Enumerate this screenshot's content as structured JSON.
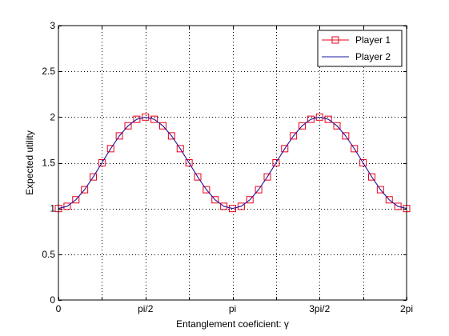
{
  "chart_data": {
    "type": "line",
    "title": "",
    "xlabel": "Entanglement coeficient: γ",
    "ylabel": "Expected utility",
    "xlim": [
      0,
      6.283185307
    ],
    "ylim": [
      0,
      3
    ],
    "x_ticks": [
      {
        "value": 0,
        "label": "0"
      },
      {
        "value": 1.5707963,
        "label": "pi/2"
      },
      {
        "value": 3.1415927,
        "label": "pi"
      },
      {
        "value": 4.712389,
        "label": "3pi/2"
      },
      {
        "value": 6.2831853,
        "label": "2pi"
      }
    ],
    "x_minor_ticks": [
      0.7853982,
      2.3561945,
      3.9269908,
      5.4977871
    ],
    "y_ticks": [
      {
        "value": 0,
        "label": "0"
      },
      {
        "value": 0.5,
        "label": "0.5"
      },
      {
        "value": 1,
        "label": "1"
      },
      {
        "value": 1.5,
        "label": "1.5"
      },
      {
        "value": 2,
        "label": "2"
      },
      {
        "value": 2.5,
        "label": "2.5"
      },
      {
        "value": 3,
        "label": "3"
      }
    ],
    "grid": true,
    "legend_position": "top-right",
    "x": [
      0,
      0.1571,
      0.3142,
      0.4712,
      0.6283,
      0.7854,
      0.9425,
      1.0996,
      1.2566,
      1.4137,
      1.5708,
      1.7279,
      1.885,
      2.042,
      2.1991,
      2.3562,
      2.5133,
      2.6704,
      2.8274,
      2.9845,
      3.1416,
      3.2987,
      3.4558,
      3.6128,
      3.7699,
      3.927,
      4.0841,
      4.2412,
      4.3982,
      4.5553,
      4.7124,
      4.8695,
      5.0265,
      5.1836,
      5.3407,
      5.4978,
      5.6549,
      5.8119,
      5.969,
      6.1261,
      6.2832
    ],
    "series": [
      {
        "name": "Player 1",
        "color": "#e8001c",
        "marker": "square",
        "values": [
          1,
          1.0245,
          1.0955,
          1.2061,
          1.3455,
          1.5,
          1.6545,
          1.7939,
          1.9045,
          1.9755,
          2,
          1.9755,
          1.9045,
          1.7939,
          1.6545,
          1.5,
          1.3455,
          1.2061,
          1.0955,
          1.0245,
          1,
          1.0245,
          1.0955,
          1.2061,
          1.3455,
          1.5,
          1.6545,
          1.7939,
          1.9045,
          1.9755,
          2,
          1.9755,
          1.9045,
          1.7939,
          1.6545,
          1.5,
          1.3455,
          1.2061,
          1.0955,
          1.0245,
          1
        ]
      },
      {
        "name": "Player 2",
        "color": "#1a1aa6",
        "marker": "none",
        "values": [
          1,
          1.0245,
          1.0955,
          1.2061,
          1.3455,
          1.5,
          1.6545,
          1.7939,
          1.9045,
          1.9755,
          2,
          1.9755,
          1.9045,
          1.7939,
          1.6545,
          1.5,
          1.3455,
          1.2061,
          1.0955,
          1.0245,
          1,
          1.0245,
          1.0955,
          1.2061,
          1.3455,
          1.5,
          1.6545,
          1.7939,
          1.9045,
          1.9755,
          2,
          1.9755,
          1.9045,
          1.7939,
          1.6545,
          1.5,
          1.3455,
          1.2061,
          1.0955,
          1.0245,
          1
        ]
      }
    ]
  }
}
